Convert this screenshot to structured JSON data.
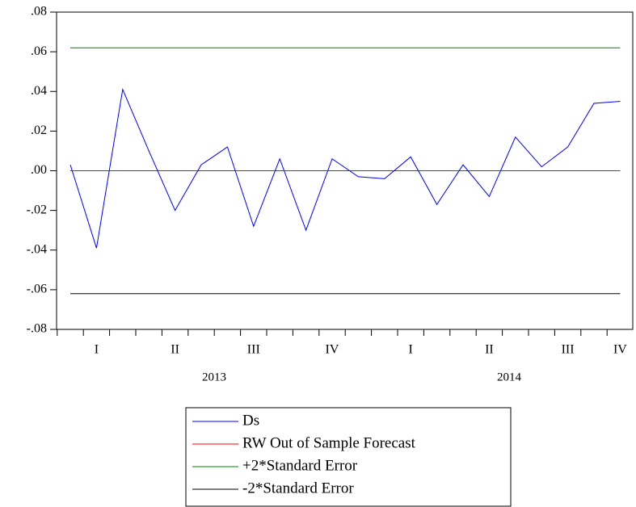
{
  "chart_data": {
    "type": "line",
    "categories": [
      null,
      "I",
      null,
      null,
      "II",
      null,
      null,
      "III",
      null,
      null,
      "IV",
      null,
      null,
      "I",
      null,
      null,
      "II",
      null,
      null,
      "III",
      null,
      "IV"
    ],
    "x_group_labels": [
      "2013",
      "2014"
    ],
    "series": [
      {
        "name": "Ds",
        "color": "#0000ff",
        "values": [
          0.003,
          -0.039,
          0.041,
          0.01,
          -0.02,
          0.003,
          0.012,
          -0.028,
          0.006,
          -0.03,
          0.006,
          -0.003,
          -0.004,
          0.007,
          -0.017,
          0.003,
          -0.013,
          0.017,
          0.002,
          0.012,
          0.034,
          0.035
        ]
      },
      {
        "name": "RW Out of Sample Forecast",
        "color": "#ff0000",
        "values": [
          0,
          0,
          0,
          0,
          0,
          0,
          0,
          0,
          0,
          0,
          0,
          0,
          0,
          0,
          0,
          0,
          0,
          0,
          0,
          0,
          0,
          0
        ]
      },
      {
        "name": "+2*Standard Error",
        "color": "#008000",
        "values": [
          0.062,
          0.062,
          0.062,
          0.062,
          0.062,
          0.062,
          0.062,
          0.062,
          0.062,
          0.062,
          0.062,
          0.062,
          0.062,
          0.062,
          0.062,
          0.062,
          0.062,
          0.062,
          0.062,
          0.062,
          0.062,
          0.062
        ]
      },
      {
        "name": "-2*Standard Error",
        "color": "#000000",
        "values": [
          -0.062,
          -0.062,
          -0.062,
          -0.062,
          -0.062,
          -0.062,
          -0.062,
          -0.062,
          -0.062,
          -0.062,
          -0.062,
          -0.062,
          -0.062,
          -0.062,
          -0.062,
          -0.062,
          -0.062,
          -0.062,
          -0.062,
          -0.062,
          -0.062,
          -0.062
        ]
      }
    ],
    "ylim": [
      -0.08,
      0.08
    ],
    "yticks": [
      {
        "value": -0.08,
        "label": "-.08"
      },
      {
        "value": -0.06,
        "label": "-.06"
      },
      {
        "value": -0.04,
        "label": "-.04"
      },
      {
        "value": -0.02,
        "label": "-.02"
      },
      {
        "value": 0,
        "label": ".00"
      },
      {
        "value": 0.02,
        "label": ".02"
      },
      {
        "value": 0.04,
        "label": ".04"
      },
      {
        "value": 0.06,
        "label": ".06"
      },
      {
        "value": 0.08,
        "label": ".08"
      }
    ],
    "legend": "bottom"
  }
}
